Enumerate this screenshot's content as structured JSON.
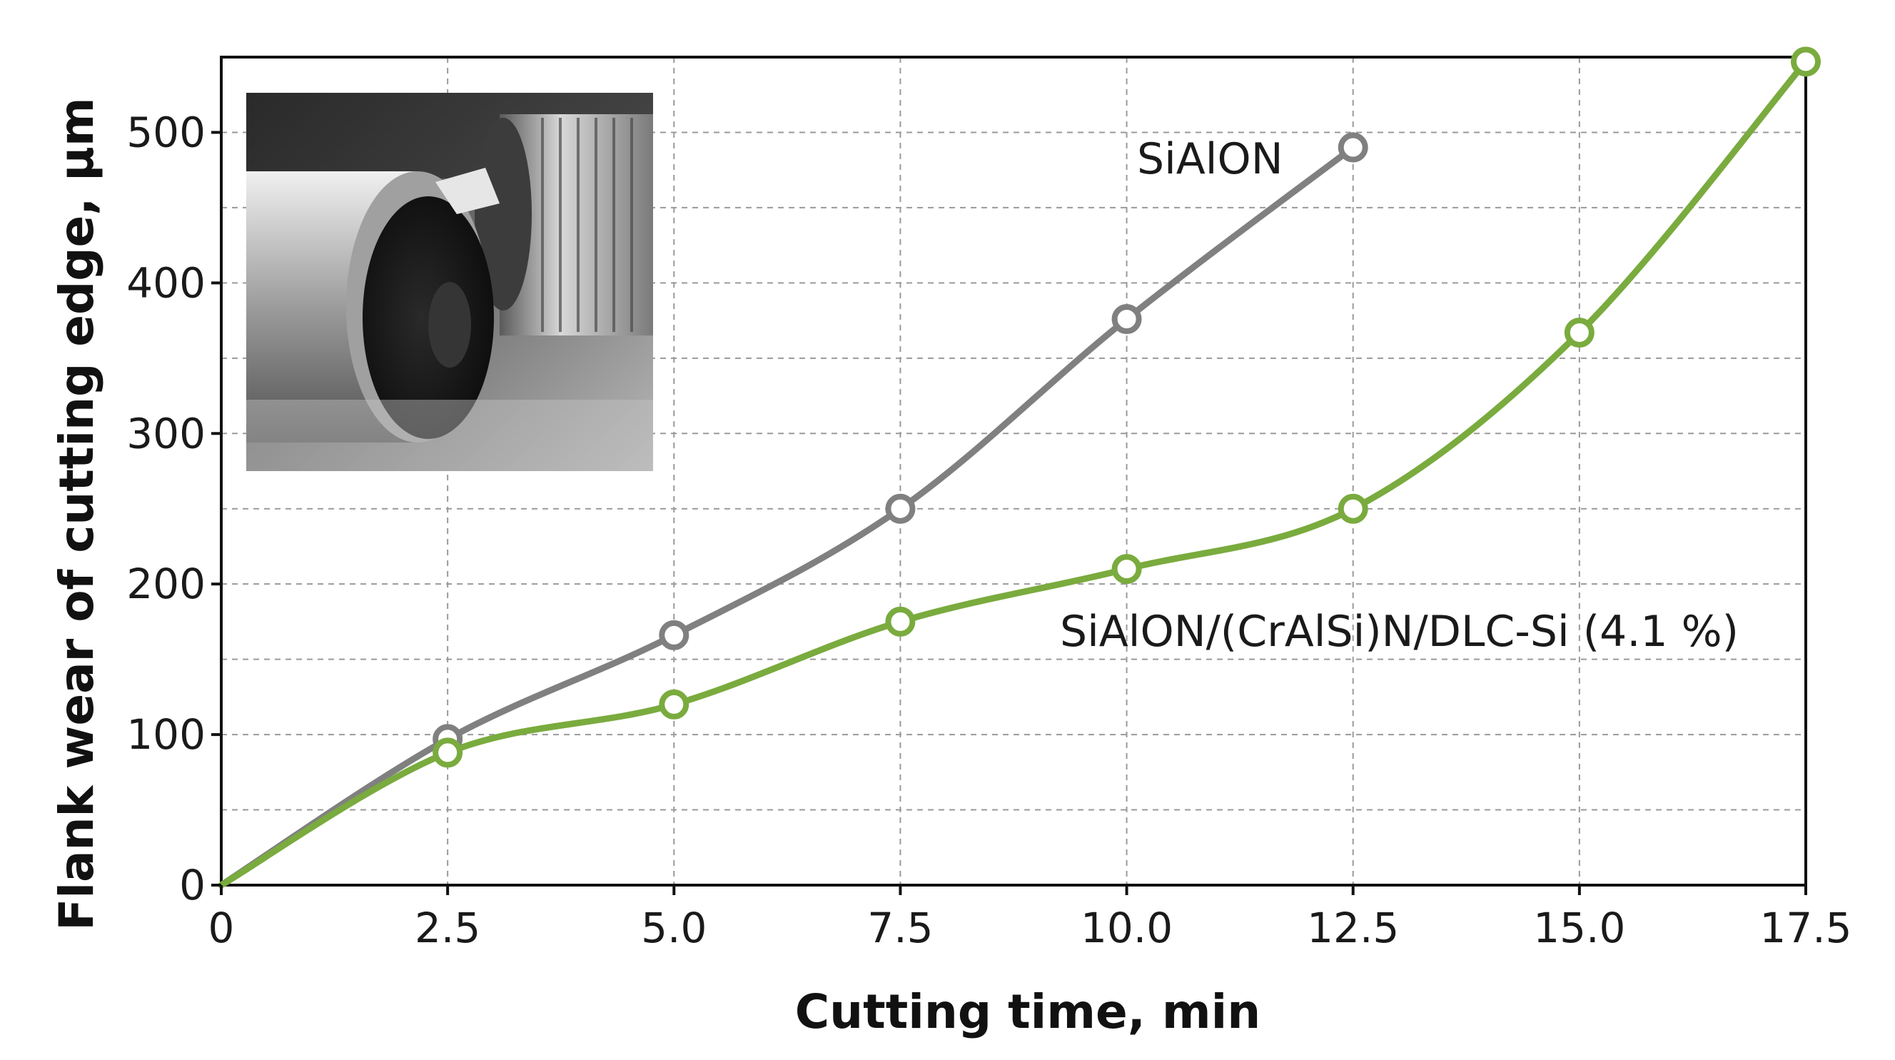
{
  "chart_data": {
    "type": "line",
    "title": "",
    "xlabel": "Cutting time, min",
    "ylabel": "Flank wear of cutting edge, μm",
    "xlim": [
      0,
      17.5
    ],
    "ylim": [
      0,
      550
    ],
    "x_ticks": [
      0,
      2.5,
      5.0,
      7.5,
      10.0,
      12.5,
      15.0,
      17.5
    ],
    "x_tick_labels": [
      "0",
      "2.5",
      "5.0",
      "7.5",
      "10.0",
      "12.5",
      "15.0",
      "17.5"
    ],
    "y_ticks": [
      0,
      100,
      200,
      300,
      400,
      500
    ],
    "y_tick_labels": [
      "0",
      "100",
      "200",
      "300",
      "400",
      "500"
    ],
    "grid": true,
    "legend": "none (inline labels)",
    "inset": "photograph of cutting tool machining a workpiece (top-left)",
    "series": [
      {
        "name": "SiAlON",
        "color": "#808080",
        "x": [
          0,
          2.5,
          5.0,
          7.5,
          10.0,
          12.5
        ],
        "y": [
          0,
          97,
          166,
          250,
          376,
          490
        ]
      },
      {
        "name": "SiAlON/(CrAlSi)N/DLC-Si (4.1 %)",
        "color": "#7aab3e",
        "x": [
          0,
          2.5,
          5.0,
          7.5,
          10.0,
          12.5,
          15.0,
          17.5
        ],
        "y": [
          0,
          88,
          120,
          175,
          210,
          250,
          367,
          547
        ]
      }
    ]
  }
}
